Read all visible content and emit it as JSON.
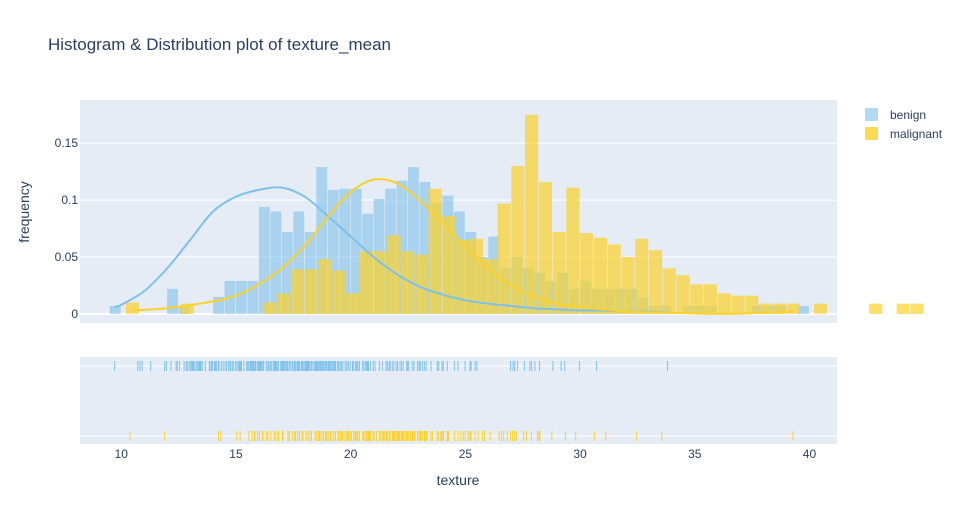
{
  "chart_data": {
    "type": "histogram",
    "title": "Histogram & Distribution plot of texture_mean",
    "xlabel": "texture",
    "ylabel": "frequency",
    "xlim": [
      8.2,
      41.2
    ],
    "ylim": [
      -0.008,
      0.188
    ],
    "x_ticks": [
      10,
      15,
      20,
      25,
      30,
      35,
      40
    ],
    "y_ticks": [
      0,
      0.05,
      0.1,
      0.15
    ],
    "y_tick_labels": [
      "0",
      "0.05",
      "0.1",
      "0.15"
    ],
    "legend_position": "top-right",
    "grid": true,
    "series": [
      {
        "name": "benign",
        "color": "#7ec1ea",
        "bin_start": 9.5,
        "bin_width": 0.5,
        "values": [
          0.007,
          0.0,
          0.0,
          0.0,
          0.0,
          0.022,
          0.007,
          0.0,
          0.0,
          0.015,
          0.029,
          0.029,
          0.029,
          0.094,
          0.09,
          0.072,
          0.09,
          0.072,
          0.129,
          0.109,
          0.11,
          0.11,
          0.088,
          0.101,
          0.11,
          0.117,
          0.129,
          0.116,
          0.097,
          0.104,
          0.09,
          0.072,
          0.05,
          0.068,
          0.04,
          0.05,
          0.04,
          0.036,
          0.029,
          0.036,
          0.022,
          0.029,
          0.022,
          0.022,
          0.022,
          0.022,
          0.014,
          0.007,
          0.007,
          0.0,
          0.007,
          0.007,
          0.007,
          0.0,
          0.0,
          0.0,
          0.007,
          0.007,
          0.007,
          0.0,
          0.007,
          0.0,
          0.0,
          0.0,
          0.0,
          0.0,
          0.0,
          0.0,
          0.0,
          0.0,
          0.0,
          0.0,
          0.0,
          0.0,
          0.0,
          0.0,
          0.0,
          0.0,
          0.0,
          0.007
        ]
      },
      {
        "name": "malignant",
        "color": "#fcd12a",
        "bin_start": 10.2,
        "bin_width": 0.6,
        "values": [
          0.01,
          0.0,
          0.0,
          0.0,
          0.009,
          0.0,
          0.0,
          0.0,
          0.0,
          0.0,
          0.01,
          0.018,
          0.039,
          0.039,
          0.048,
          0.038,
          0.018,
          0.055,
          0.055,
          0.069,
          0.055,
          0.052,
          0.11,
          0.086,
          0.065,
          0.066,
          0.048,
          0.097,
          0.13,
          0.175,
          0.116,
          0.072,
          0.111,
          0.071,
          0.067,
          0.061,
          0.05,
          0.066,
          0.056,
          0.04,
          0.034,
          0.026,
          0.026,
          0.018,
          0.016,
          0.016,
          0.009,
          0.009,
          0.009,
          0.0,
          0.009,
          0.0,
          0.0,
          0.0,
          0.009,
          0.0,
          0.009,
          0.009,
          0.0,
          0.0,
          0.0,
          0.0,
          0.0,
          0.0,
          0.0,
          0.0,
          0.0,
          0.0,
          0.0,
          0.0,
          0.0,
          0.0,
          0.0,
          0.0,
          0.0,
          0.0,
          0.0,
          0.0,
          0.0,
          0.0,
          0.0,
          0.0,
          0.0,
          0.0,
          0.0,
          0.0,
          0.0,
          0.0,
          0.0,
          0.0,
          0.0,
          0.0,
          0.0,
          0.0,
          0.0,
          0.0,
          0.0,
          0.0,
          0.0,
          0.0,
          0.0,
          0.0,
          0.0,
          0.0,
          0.0,
          0.0,
          0.0,
          0.0,
          0.009
        ]
      }
    ],
    "density_curves": [
      {
        "name": "benign",
        "color": "#7ec1ea",
        "x": [
          9.7,
          10,
          11,
          12,
          13,
          14,
          15,
          16,
          17,
          18,
          19,
          20,
          21,
          22,
          23,
          24,
          25,
          26,
          27,
          28,
          29,
          30,
          31,
          32,
          33,
          34
        ],
        "y": [
          0.006,
          0.008,
          0.02,
          0.04,
          0.065,
          0.09,
          0.103,
          0.109,
          0.111,
          0.103,
          0.086,
          0.068,
          0.05,
          0.035,
          0.024,
          0.017,
          0.012,
          0.009,
          0.007,
          0.005,
          0.004,
          0.003,
          0.003,
          0.002,
          0.002,
          0.001
        ]
      },
      {
        "name": "malignant",
        "color": "#fcd12a",
        "x": [
          10.4,
          12,
          14,
          15,
          16,
          17,
          18,
          19,
          20,
          21,
          22,
          23,
          24,
          25,
          26,
          27,
          28,
          29,
          30,
          31,
          32,
          34,
          36,
          38,
          39.3
        ],
        "y": [
          0.003,
          0.005,
          0.011,
          0.016,
          0.026,
          0.04,
          0.06,
          0.085,
          0.107,
          0.118,
          0.115,
          0.1,
          0.08,
          0.06,
          0.04,
          0.025,
          0.015,
          0.009,
          0.006,
          0.004,
          0.002,
          0.001,
          0.0,
          0.001,
          0.002
        ]
      }
    ],
    "rug": [
      {
        "name": "benign",
        "color": "#7ec1ea",
        "x": [
          9.71,
          10.72,
          10.82,
          10.91,
          11.28,
          11.89,
          11.97,
          12.17,
          12.39,
          12.44,
          12.54,
          12.74,
          12.83,
          12.88,
          12.96,
          13.03,
          13.08,
          13.12,
          13.16,
          13.21,
          13.29,
          13.34,
          13.39,
          13.43,
          13.47,
          13.53,
          13.66,
          13.84,
          13.86,
          13.93,
          13.98,
          14.06,
          14.11,
          14.16,
          14.23,
          14.26,
          14.36,
          14.44,
          14.52,
          14.59,
          14.67,
          14.74,
          14.76,
          14.83,
          14.88,
          14.97,
          15.04,
          15.1,
          15.15,
          15.18,
          15.21,
          15.24,
          15.34,
          15.45,
          15.51,
          15.56,
          15.62,
          15.65,
          15.7,
          15.74,
          15.79,
          15.84,
          15.86,
          15.93,
          15.98,
          16.02,
          16.07,
          16.11,
          16.17,
          16.21,
          16.32,
          16.39,
          16.43,
          16.49,
          16.54,
          16.62,
          16.67,
          16.7,
          16.74,
          16.78,
          16.84,
          16.85,
          16.95,
          17.0,
          17.03,
          17.05,
          17.07,
          17.12,
          17.18,
          17.2,
          17.25,
          17.26,
          17.33,
          17.39,
          17.46,
          17.53,
          17.57,
          17.62,
          17.68,
          17.72,
          17.77,
          17.84,
          17.88,
          17.92,
          17.93,
          18.0,
          18.03,
          18.07,
          18.1,
          18.14,
          18.18,
          18.22,
          18.29,
          18.32,
          18.4,
          18.45,
          18.49,
          18.52,
          18.57,
          18.61,
          18.66,
          18.7,
          18.75,
          18.8,
          18.82,
          18.84,
          18.9,
          18.95,
          19.01,
          19.05,
          19.1,
          19.13,
          19.19,
          19.24,
          19.29,
          19.34,
          19.42,
          19.47,
          19.54,
          19.59,
          19.66,
          19.76,
          19.83,
          19.9,
          19.98,
          20.08,
          20.13,
          20.22,
          20.26,
          20.31,
          20.38,
          20.52,
          20.58,
          20.66,
          20.7,
          20.74,
          20.78,
          20.86,
          20.98,
          21.06,
          21.25,
          21.38,
          21.54,
          21.6,
          21.68,
          21.72,
          21.81,
          21.88,
          21.98,
          22.04,
          22.15,
          22.22,
          22.29,
          22.44,
          22.47,
          22.53,
          22.68,
          22.76,
          22.91,
          22.98,
          23.03,
          23.12,
          23.21,
          23.29,
          23.5,
          23.77,
          23.84,
          23.98,
          24.04,
          24.21,
          24.52,
          24.68,
          24.99,
          25.2,
          25.25,
          25.42,
          25.5,
          26.97,
          27.08,
          27.15,
          27.27,
          27.57,
          27.81,
          27.88,
          28.03,
          28.23,
          28.82,
          29.17,
          29.33,
          29.97,
          30.72,
          33.81
        ]
      },
      {
        "name": "malignant",
        "color": "#fcd12a",
        "x": [
          10.38,
          11.89,
          14.23,
          14.34,
          15.03,
          15.18,
          15.56,
          15.7,
          15.79,
          15.83,
          15.94,
          16.02,
          16.15,
          16.17,
          16.32,
          16.39,
          16.52,
          16.67,
          16.74,
          16.84,
          16.85,
          17.02,
          17.05,
          17.27,
          17.33,
          17.46,
          17.57,
          17.6,
          17.69,
          17.77,
          17.88,
          17.92,
          18.06,
          18.14,
          18.22,
          18.29,
          18.45,
          18.52,
          18.6,
          18.61,
          18.66,
          18.75,
          18.82,
          18.9,
          18.96,
          19.02,
          19.1,
          19.13,
          19.24,
          19.32,
          19.34,
          19.45,
          19.47,
          19.54,
          19.59,
          19.65,
          19.66,
          19.75,
          19.83,
          19.86,
          19.9,
          19.98,
          20.03,
          20.13,
          20.2,
          20.22,
          20.26,
          20.31,
          20.38,
          20.52,
          20.56,
          20.58,
          20.66,
          20.71,
          20.76,
          20.78,
          20.82,
          20.86,
          20.98,
          21.02,
          21.12,
          21.25,
          21.31,
          21.38,
          21.43,
          21.46,
          21.54,
          21.58,
          21.59,
          21.6,
          21.68,
          21.72,
          21.81,
          21.84,
          21.88,
          21.91,
          21.98,
          22.04,
          22.07,
          22.11,
          22.15,
          22.22,
          22.25,
          22.29,
          22.33,
          22.41,
          22.44,
          22.47,
          22.53,
          22.61,
          22.68,
          22.71,
          22.76,
          22.81,
          22.91,
          22.98,
          23.03,
          23.06,
          23.12,
          23.21,
          23.23,
          23.24,
          23.29,
          23.33,
          23.5,
          23.56,
          23.77,
          23.84,
          23.93,
          23.95,
          23.98,
          24.04,
          24.21,
          24.25,
          24.27,
          24.52,
          24.68,
          24.8,
          24.91,
          24.99,
          25.12,
          25.2,
          25.25,
          25.42,
          25.56,
          25.74,
          25.84,
          26.08,
          26.47,
          26.57,
          26.67,
          26.83,
          26.97,
          27.06,
          27.15,
          27.22,
          27.54,
          27.66,
          27.88,
          28.14,
          28.21,
          28.25,
          28.77,
          29.37,
          29.81,
          30.62,
          31.12,
          32.47,
          33.56,
          39.28
        ]
      }
    ]
  }
}
